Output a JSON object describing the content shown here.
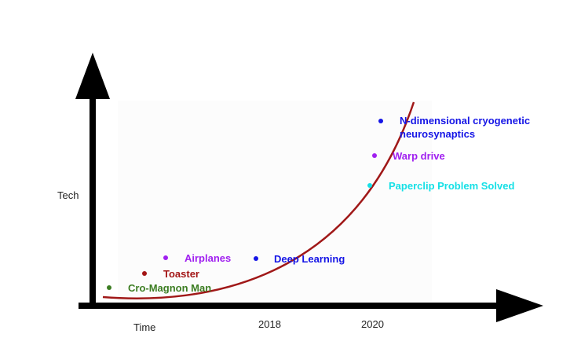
{
  "axes": {
    "y_label": "Tech",
    "x_label": "Time",
    "ticks": [
      "2018",
      "2020"
    ]
  },
  "curve_color": "#a01818",
  "milestones": [
    {
      "label": "Cro-Magnon Man",
      "color": "#3c7d22"
    },
    {
      "label": "Toaster",
      "color": "#a31515"
    },
    {
      "label": "Airplanes",
      "color": "#a020f0"
    },
    {
      "label": "Deep Learning",
      "color": "#1515e6"
    },
    {
      "label": "Paperclip Problem Solved",
      "color": "#16e0e6"
    },
    {
      "label": "Warp drive",
      "color": "#a020f0"
    },
    {
      "label": "N-dimensional cryogenetic",
      "label_line2": "neurosynaptics",
      "color": "#1515e6"
    }
  ]
}
